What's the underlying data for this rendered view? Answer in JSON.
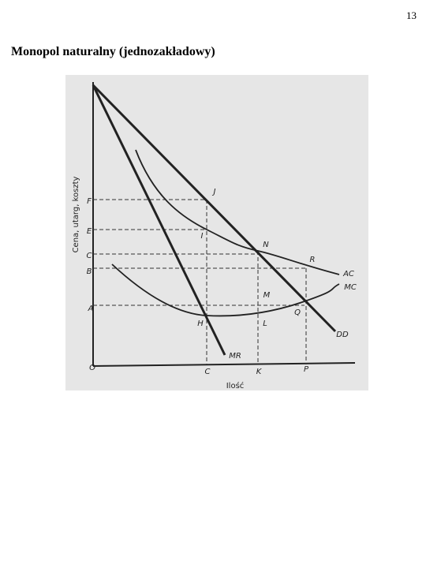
{
  "page_number": "13",
  "title": "Monopol naturalny (jednozakładowy)",
  "diagram": {
    "y_axis_label": "Cena, utarg, koszty",
    "x_axis_label": "Ilość",
    "origin": "O",
    "y_labels": [
      "F",
      "E",
      "C",
      "B",
      "A"
    ],
    "x_labels": [
      "C",
      "K",
      "P"
    ],
    "points": [
      "J",
      "I",
      "N",
      "R",
      "M",
      "H",
      "L",
      "Q"
    ],
    "curves": [
      "AC",
      "MC",
      "DD",
      "MR"
    ]
  }
}
